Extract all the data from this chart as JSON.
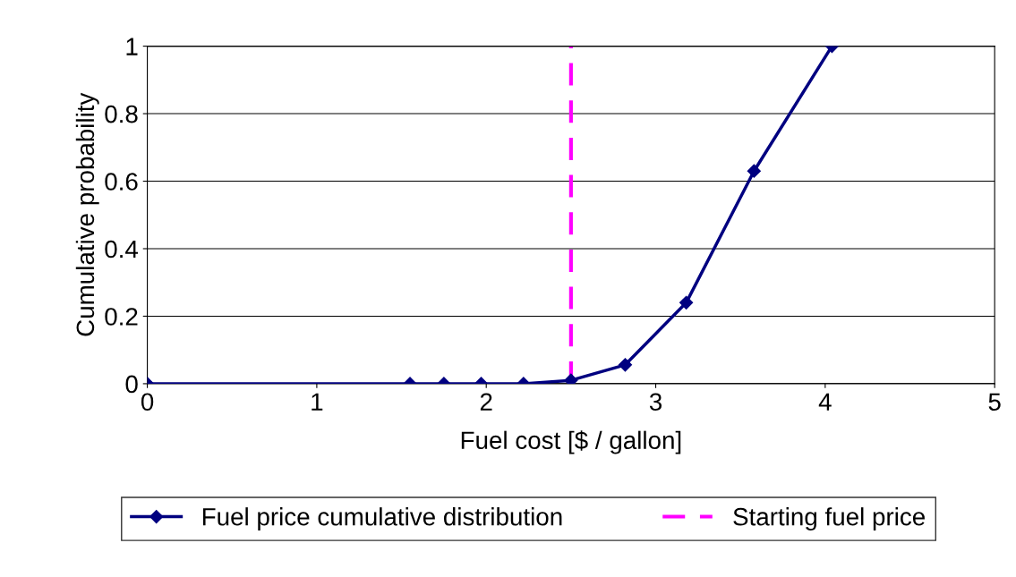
{
  "chart_data": {
    "type": "line",
    "xlabel": "Fuel cost [$ / gallon]",
    "ylabel": "Cumulative probability",
    "series": [
      {
        "name": "Fuel price cumulative distribution",
        "color": "#000080",
        "x": [
          0,
          1.55,
          1.75,
          1.97,
          2.22,
          2.5,
          2.82,
          3.18,
          3.58,
          4.04
        ],
        "values": [
          0,
          0,
          0,
          0,
          0,
          0.01,
          0.056,
          0.24,
          0.63,
          1
        ]
      }
    ],
    "ref_lines": [
      {
        "axis": "x",
        "value": 2.5,
        "label": "Starting fuel price",
        "color": "#ff00ff",
        "line_style": "dashed"
      }
    ],
    "xlim": [
      0,
      5
    ],
    "xticks": [
      0,
      1,
      2,
      3,
      4,
      5
    ],
    "ylim": [
      0,
      1
    ],
    "yticks": [
      0,
      0.2,
      0.4,
      0.6,
      0.8,
      1
    ],
    "grid": "y",
    "legend": "bottom",
    "marker": "diamond",
    "line_style": "solid"
  }
}
